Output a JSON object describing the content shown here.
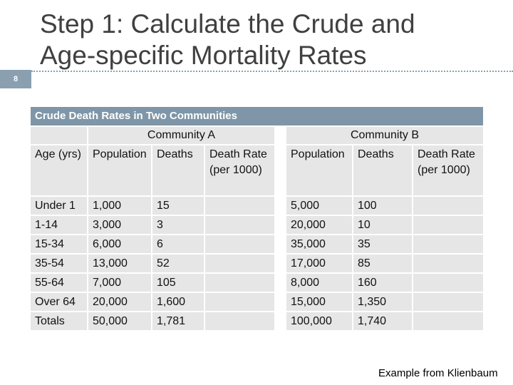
{
  "slide": {
    "number": "8",
    "title_line1": "Step 1: Calculate the Crude and",
    "title_line2": "Age-specific Mortality Rates",
    "source_note": "Example from Klienbaum"
  },
  "table": {
    "caption": "Crude Death Rates in Two Communities",
    "community_a": "Community A",
    "community_b": "Community B",
    "headers": {
      "age": "Age (yrs)",
      "population": "Population",
      "deaths": "Deaths",
      "death_rate": "Death Rate (per 1000)"
    },
    "rows": [
      {
        "age": "Under 1",
        "a_pop": "1,000",
        "a_deaths": "15",
        "a_rate": "",
        "b_pop": "5,000",
        "b_deaths": "100",
        "b_rate": ""
      },
      {
        "age": "1-14",
        "a_pop": "3,000",
        "a_deaths": "3",
        "a_rate": "",
        "b_pop": "20,000",
        "b_deaths": "10",
        "b_rate": ""
      },
      {
        "age": "15-34",
        "a_pop": "6,000",
        "a_deaths": "6",
        "a_rate": "",
        "b_pop": "35,000",
        "b_deaths": "35",
        "b_rate": ""
      },
      {
        "age": "35-54",
        "a_pop": "13,000",
        "a_deaths": "52",
        "a_rate": "",
        "b_pop": "17,000",
        "b_deaths": "85",
        "b_rate": ""
      },
      {
        "age": "55-64",
        "a_pop": "7,000",
        "a_deaths": "105",
        "a_rate": "",
        "b_pop": "8,000",
        "b_deaths": "160",
        "b_rate": ""
      },
      {
        "age": "Over 64",
        "a_pop": "20,000",
        "a_deaths": "1,600",
        "a_rate": "",
        "b_pop": "15,000",
        "b_deaths": "1,350",
        "b_rate": ""
      },
      {
        "age": "Totals",
        "a_pop": "50,000",
        "a_deaths": "1,781",
        "a_rate": "",
        "b_pop": "100,000",
        "b_deaths": "1,740",
        "b_rate": ""
      }
    ]
  }
}
